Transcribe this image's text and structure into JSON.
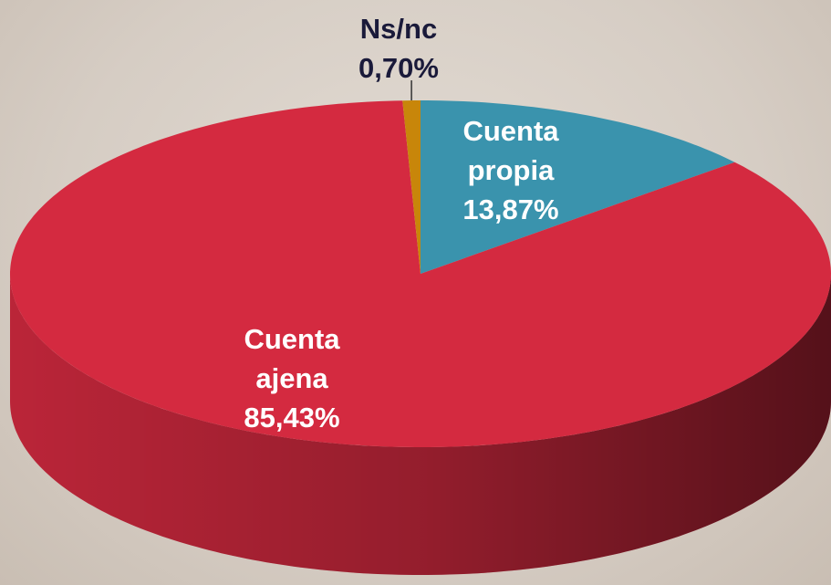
{
  "chart_data": {
    "type": "pie",
    "categories": [
      "Cuenta propia",
      "Cuenta ajena",
      "Ns/nc"
    ],
    "values": [
      13.87,
      85.43,
      0.7
    ],
    "value_labels": [
      "13,87%",
      "85,43%",
      "0,70%"
    ],
    "colors": [
      "#3a93ad",
      "#d42a40",
      "#c8860a"
    ]
  }
}
